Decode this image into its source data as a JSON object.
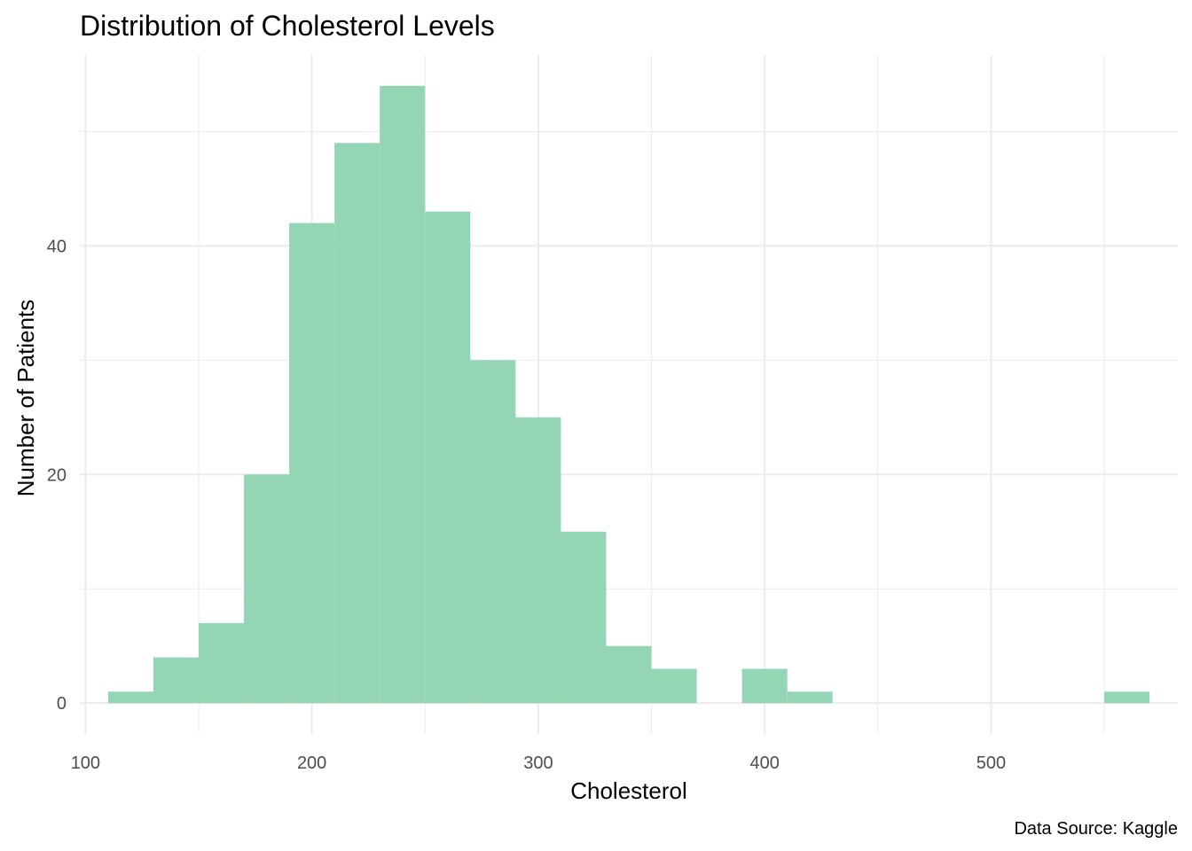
{
  "chart_data": {
    "type": "bar",
    "subtype": "histogram",
    "title": "Distribution of Cholesterol Levels",
    "xlabel": "Cholesterol",
    "ylabel": "Number of Patients",
    "caption": "Data Source: Kaggle",
    "bar_color": "#93D5B4",
    "grid": true,
    "grid_color": "#ebebeb",
    "xlim": [
      97.5,
      582.5
    ],
    "ylim": [
      -2.7,
      56.7
    ],
    "x_ticks": [
      100,
      200,
      300,
      400,
      500
    ],
    "x_tick_labels": [
      "100",
      "200",
      "300",
      "400",
      "500"
    ],
    "y_ticks": [
      0,
      20,
      40
    ],
    "y_tick_labels": [
      "0",
      "20",
      "40"
    ],
    "bins": [
      {
        "x0": 110,
        "x1": 130,
        "count": 1
      },
      {
        "x0": 130,
        "x1": 150,
        "count": 4
      },
      {
        "x0": 150,
        "x1": 170,
        "count": 7
      },
      {
        "x0": 170,
        "x1": 190,
        "count": 20
      },
      {
        "x0": 190,
        "x1": 210,
        "count": 42
      },
      {
        "x0": 210,
        "x1": 230,
        "count": 49
      },
      {
        "x0": 230,
        "x1": 250,
        "count": 54
      },
      {
        "x0": 250,
        "x1": 270,
        "count": 43
      },
      {
        "x0": 270,
        "x1": 290,
        "count": 30
      },
      {
        "x0": 290,
        "x1": 310,
        "count": 25
      },
      {
        "x0": 310,
        "x1": 330,
        "count": 15
      },
      {
        "x0": 330,
        "x1": 350,
        "count": 5
      },
      {
        "x0": 350,
        "x1": 370,
        "count": 3
      },
      {
        "x0": 370,
        "x1": 390,
        "count": 0
      },
      {
        "x0": 390,
        "x1": 410,
        "count": 3
      },
      {
        "x0": 410,
        "x1": 430,
        "count": 1
      },
      {
        "x0": 430,
        "x1": 450,
        "count": 0
      },
      {
        "x0": 450,
        "x1": 470,
        "count": 0
      },
      {
        "x0": 470,
        "x1": 490,
        "count": 0
      },
      {
        "x0": 490,
        "x1": 510,
        "count": 0
      },
      {
        "x0": 510,
        "x1": 530,
        "count": 0
      },
      {
        "x0": 530,
        "x1": 550,
        "count": 0
      },
      {
        "x0": 550,
        "x1": 570,
        "count": 1
      }
    ]
  }
}
